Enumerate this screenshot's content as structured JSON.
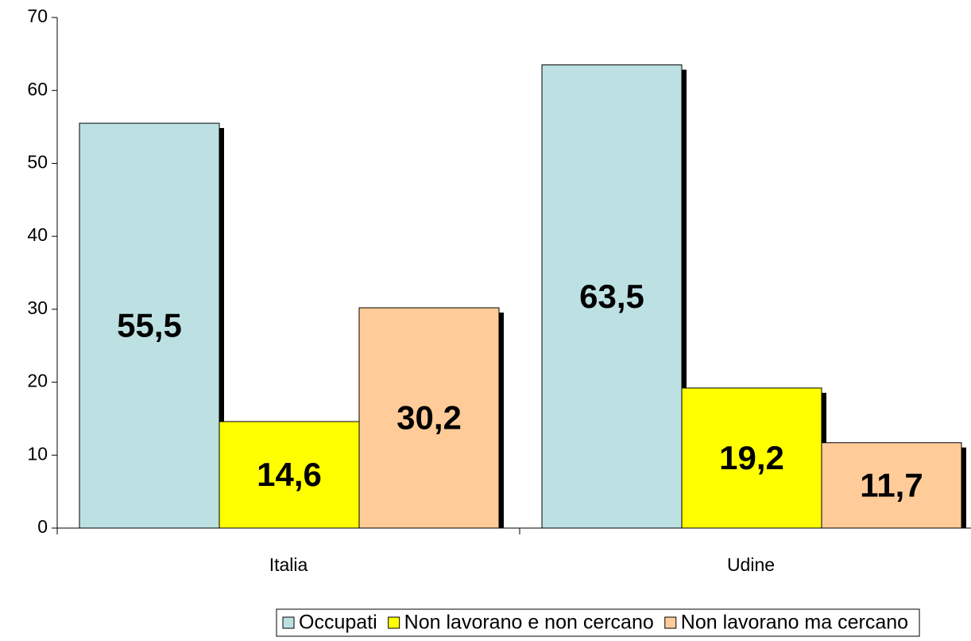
{
  "chart_data": {
    "type": "bar",
    "categories": [
      "Italia",
      "Udine"
    ],
    "series": [
      {
        "name": "Occupati",
        "color": "#bde1e3",
        "values": [
          55.5,
          63.5
        ],
        "value_labels": [
          "55,5",
          "63,5"
        ]
      },
      {
        "name": "Non lavorano e non cercano",
        "color": "#ffff00",
        "values": [
          14.6,
          19.2
        ],
        "value_labels": [
          "14,6",
          "19,2"
        ]
      },
      {
        "name": "Non lavorano ma cercano",
        "color": "#ffcc99",
        "values": [
          30.2,
          11.7
        ],
        "value_labels": [
          "30,2",
          "11,7"
        ]
      }
    ],
    "ylim": [
      0,
      70
    ],
    "yticks": [
      0,
      10,
      20,
      30,
      40,
      50,
      60,
      70
    ],
    "legend": "bottom"
  }
}
